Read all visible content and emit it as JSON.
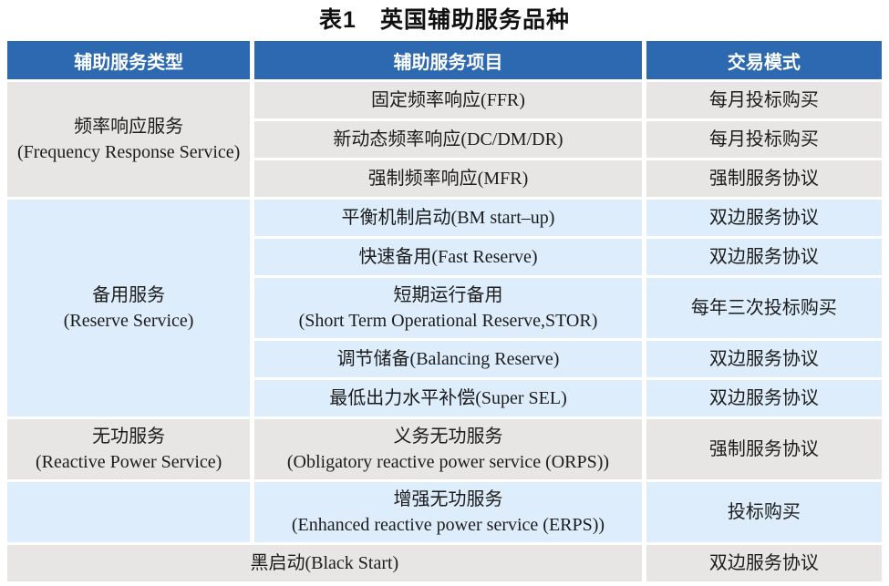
{
  "title": "表1　英国辅助服务品种",
  "table": {
    "headers": [
      "辅助服务类型",
      "辅助服务项目",
      "交易模式"
    ],
    "rows": [
      {
        "cells": [
          {
            "name": "service-type-cell",
            "lines": [
              "频率响应服务",
              "(Frequency Response Service)"
            ],
            "rowspan": 3,
            "bg": "gray"
          },
          {
            "name": "service-item-cell",
            "lines": [
              "固定频率响应(FFR)"
            ],
            "bg": "gray"
          },
          {
            "name": "trade-mode-cell",
            "lines": [
              "每月投标购买"
            ],
            "bg": "gray"
          }
        ]
      },
      {
        "cells": [
          {
            "name": "service-item-cell",
            "lines": [
              "新动态频率响应(DC/DM/DR)"
            ],
            "bg": "gray"
          },
          {
            "name": "trade-mode-cell",
            "lines": [
              "每月投标购买"
            ],
            "bg": "gray"
          }
        ]
      },
      {
        "cells": [
          {
            "name": "service-item-cell",
            "lines": [
              "强制频率响应(MFR)"
            ],
            "bg": "gray"
          },
          {
            "name": "trade-mode-cell",
            "lines": [
              "强制服务协议"
            ],
            "bg": "gray"
          }
        ]
      },
      {
        "cells": [
          {
            "name": "service-type-cell",
            "lines": [
              "备用服务",
              "(Reserve Service)"
            ],
            "rowspan": 5,
            "bg": "blue"
          },
          {
            "name": "service-item-cell",
            "lines": [
              "平衡机制启动(BM start–up)"
            ],
            "bg": "blue"
          },
          {
            "name": "trade-mode-cell",
            "lines": [
              "双边服务协议"
            ],
            "bg": "blue"
          }
        ]
      },
      {
        "cells": [
          {
            "name": "service-item-cell",
            "lines": [
              "快速备用(Fast Reserve)"
            ],
            "bg": "blue"
          },
          {
            "name": "trade-mode-cell",
            "lines": [
              "双边服务协议"
            ],
            "bg": "blue"
          }
        ]
      },
      {
        "cells": [
          {
            "name": "service-item-cell",
            "lines": [
              "短期运行备用",
              "(Short Term Operational Reserve,STOR)"
            ],
            "bg": "blue"
          },
          {
            "name": "trade-mode-cell",
            "lines": [
              "每年三次投标购买"
            ],
            "bg": "blue"
          }
        ]
      },
      {
        "cells": [
          {
            "name": "service-item-cell",
            "lines": [
              "调节储备(Balancing Reserve)"
            ],
            "bg": "blue"
          },
          {
            "name": "trade-mode-cell",
            "lines": [
              "双边服务协议"
            ],
            "bg": "blue"
          }
        ]
      },
      {
        "cells": [
          {
            "name": "service-item-cell",
            "lines": [
              "最低出力水平补偿(Super SEL)"
            ],
            "bg": "blue"
          },
          {
            "name": "trade-mode-cell",
            "lines": [
              "双边服务协议"
            ],
            "bg": "blue"
          }
        ]
      },
      {
        "cells": [
          {
            "name": "service-type-cell",
            "lines": [
              "无功服务",
              "(Reactive Power Service)"
            ],
            "bg": "gray"
          },
          {
            "name": "service-item-cell",
            "lines": [
              "义务无功服务",
              "(Obligatory reactive power service (ORPS))"
            ],
            "bg": "gray"
          },
          {
            "name": "trade-mode-cell",
            "lines": [
              "强制服务协议"
            ],
            "bg": "gray"
          }
        ]
      },
      {
        "cells": [
          {
            "name": "service-type-cell",
            "lines": [],
            "bg": "blue"
          },
          {
            "name": "service-item-cell",
            "lines": [
              "增强无功服务",
              "(Enhanced reactive power service (ERPS))"
            ],
            "bg": "blue"
          },
          {
            "name": "trade-mode-cell",
            "lines": [
              "投标购买"
            ],
            "bg": "blue"
          }
        ]
      },
      {
        "cells": [
          {
            "name": "service-item-cell",
            "lines": [
              "黑启动(Black Start)"
            ],
            "colspan": 2,
            "bg": "gray"
          },
          {
            "name": "trade-mode-cell",
            "lines": [
              "双边服务协议"
            ],
            "bg": "gray"
          }
        ]
      }
    ]
  },
  "colors": {
    "header_bg": "#2c69b0",
    "header_text": "#ffffff",
    "row_gray_bg": "#e7e6e4",
    "row_blue_bg": "#ddedfb",
    "body_text": "#1c1c1c",
    "title_text": "#111111",
    "page_bg": "#ffffff"
  }
}
